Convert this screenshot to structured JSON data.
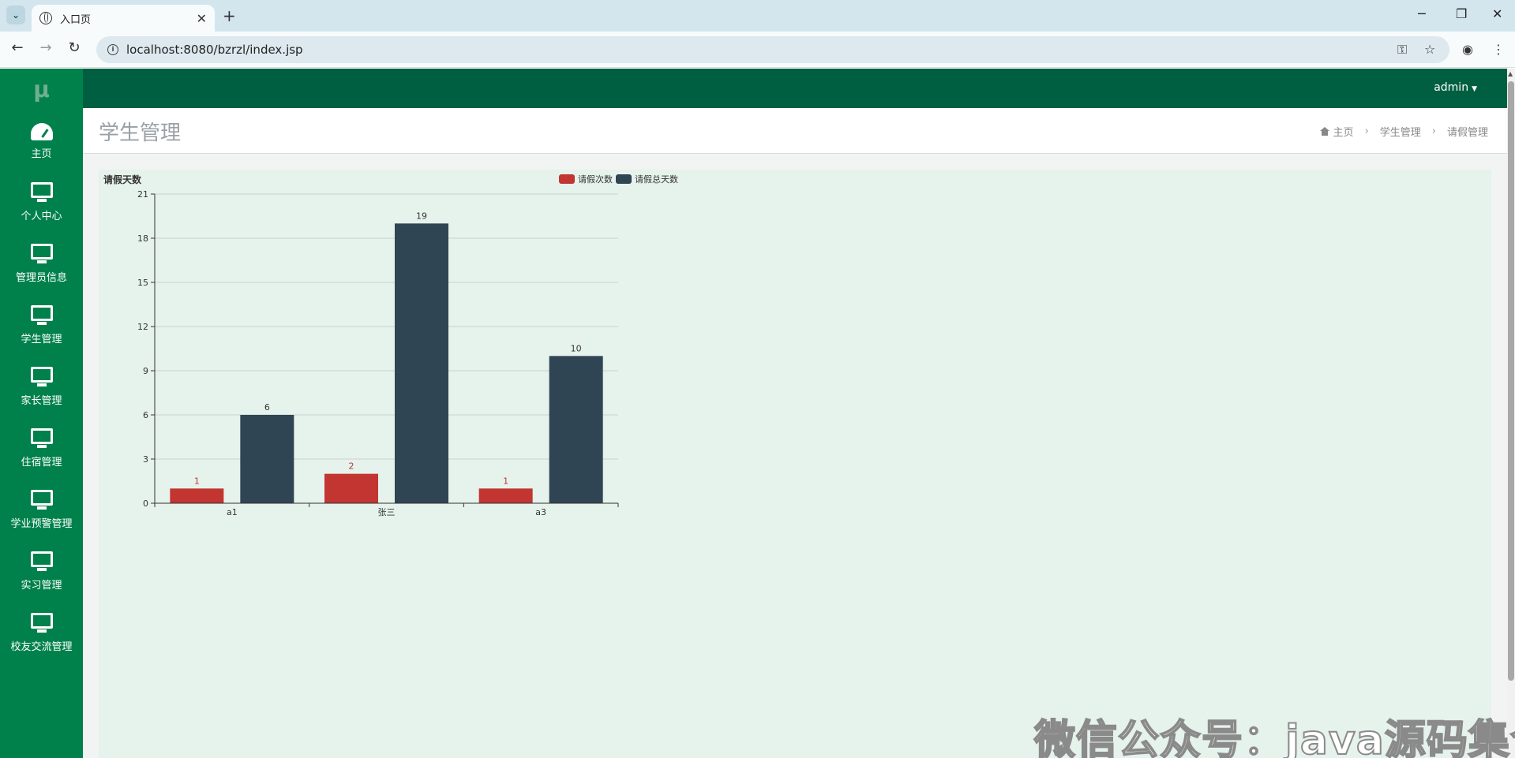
{
  "browser": {
    "tab_title": "入口页",
    "url": "localhost:8080/bzrzl/index.jsp"
  },
  "app": {
    "logo": "μ",
    "user": "admin",
    "sidebar": [
      {
        "label": "主页",
        "icon": "dashboard-icon"
      },
      {
        "label": "个人中心",
        "icon": "monitor-icon"
      },
      {
        "label": "管理员信息",
        "icon": "monitor-icon"
      },
      {
        "label": "学生管理",
        "icon": "monitor-icon"
      },
      {
        "label": "家长管理",
        "icon": "monitor-icon"
      },
      {
        "label": "住宿管理",
        "icon": "monitor-icon"
      },
      {
        "label": "学业预警管理",
        "icon": "monitor-icon"
      },
      {
        "label": "实习管理",
        "icon": "monitor-icon"
      },
      {
        "label": "校友交流管理",
        "icon": "monitor-icon"
      }
    ],
    "page_title": "学生管理",
    "breadcrumb": [
      "主页",
      "学生管理",
      "请假管理"
    ]
  },
  "chart_data": {
    "type": "bar",
    "title": "请假天数",
    "categories": [
      "a1",
      "张三",
      "a3"
    ],
    "series": [
      {
        "name": "请假次数",
        "values": [
          1,
          2,
          1
        ],
        "color": "#c23531"
      },
      {
        "name": "请假总天数",
        "values": [
          6,
          19,
          10
        ],
        "color": "#2f4554"
      }
    ],
    "yticks": [
      "0",
      "3",
      "6",
      "9",
      "12",
      "15",
      "18",
      "21"
    ],
    "ylim": [
      0,
      21
    ],
    "grid": true,
    "legend_position": "top"
  },
  "watermark": "微信公众号：java源码集合"
}
